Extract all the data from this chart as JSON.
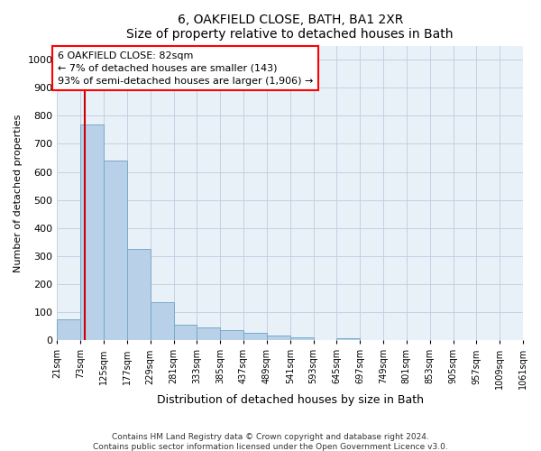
{
  "title": "6, OAKFIELD CLOSE, BATH, BA1 2XR",
  "subtitle": "Size of property relative to detached houses in Bath",
  "xlabel": "Distribution of detached houses by size in Bath",
  "ylabel": "Number of detached properties",
  "footnote1": "Contains HM Land Registry data © Crown copyright and database right 2024.",
  "footnote2": "Contains public sector information licensed under the Open Government Licence v3.0.",
  "annotation_line1": "6 OAKFIELD CLOSE: 82sqm",
  "annotation_line2": "← 7% of detached houses are smaller (143)",
  "annotation_line3": "93% of semi-detached houses are larger (1,906) →",
  "bar_color": "#b8d0e8",
  "bar_edge_color": "#7aaac8",
  "marker_color": "#cc0000",
  "background_color": "#e8f0f8",
  "bins": [
    21,
    73,
    125,
    177,
    229,
    281,
    333,
    385,
    437,
    489,
    541,
    593,
    645,
    697,
    749,
    801,
    853,
    905,
    957,
    1009,
    1061
  ],
  "bin_labels": [
    "21sqm",
    "73sqm",
    "125sqm",
    "177sqm",
    "229sqm",
    "281sqm",
    "333sqm",
    "385sqm",
    "437sqm",
    "489sqm",
    "541sqm",
    "593sqm",
    "645sqm",
    "697sqm",
    "749sqm",
    "801sqm",
    "853sqm",
    "905sqm",
    "957sqm",
    "1009sqm",
    "1061sqm"
  ],
  "values": [
    75,
    770,
    640,
    325,
    135,
    55,
    45,
    35,
    25,
    18,
    10,
    0,
    8,
    0,
    0,
    0,
    0,
    0,
    0,
    0
  ],
  "property_size": 82,
  "ylim": [
    0,
    1050
  ],
  "yticks": [
    0,
    100,
    200,
    300,
    400,
    500,
    600,
    700,
    800,
    900,
    1000
  ]
}
